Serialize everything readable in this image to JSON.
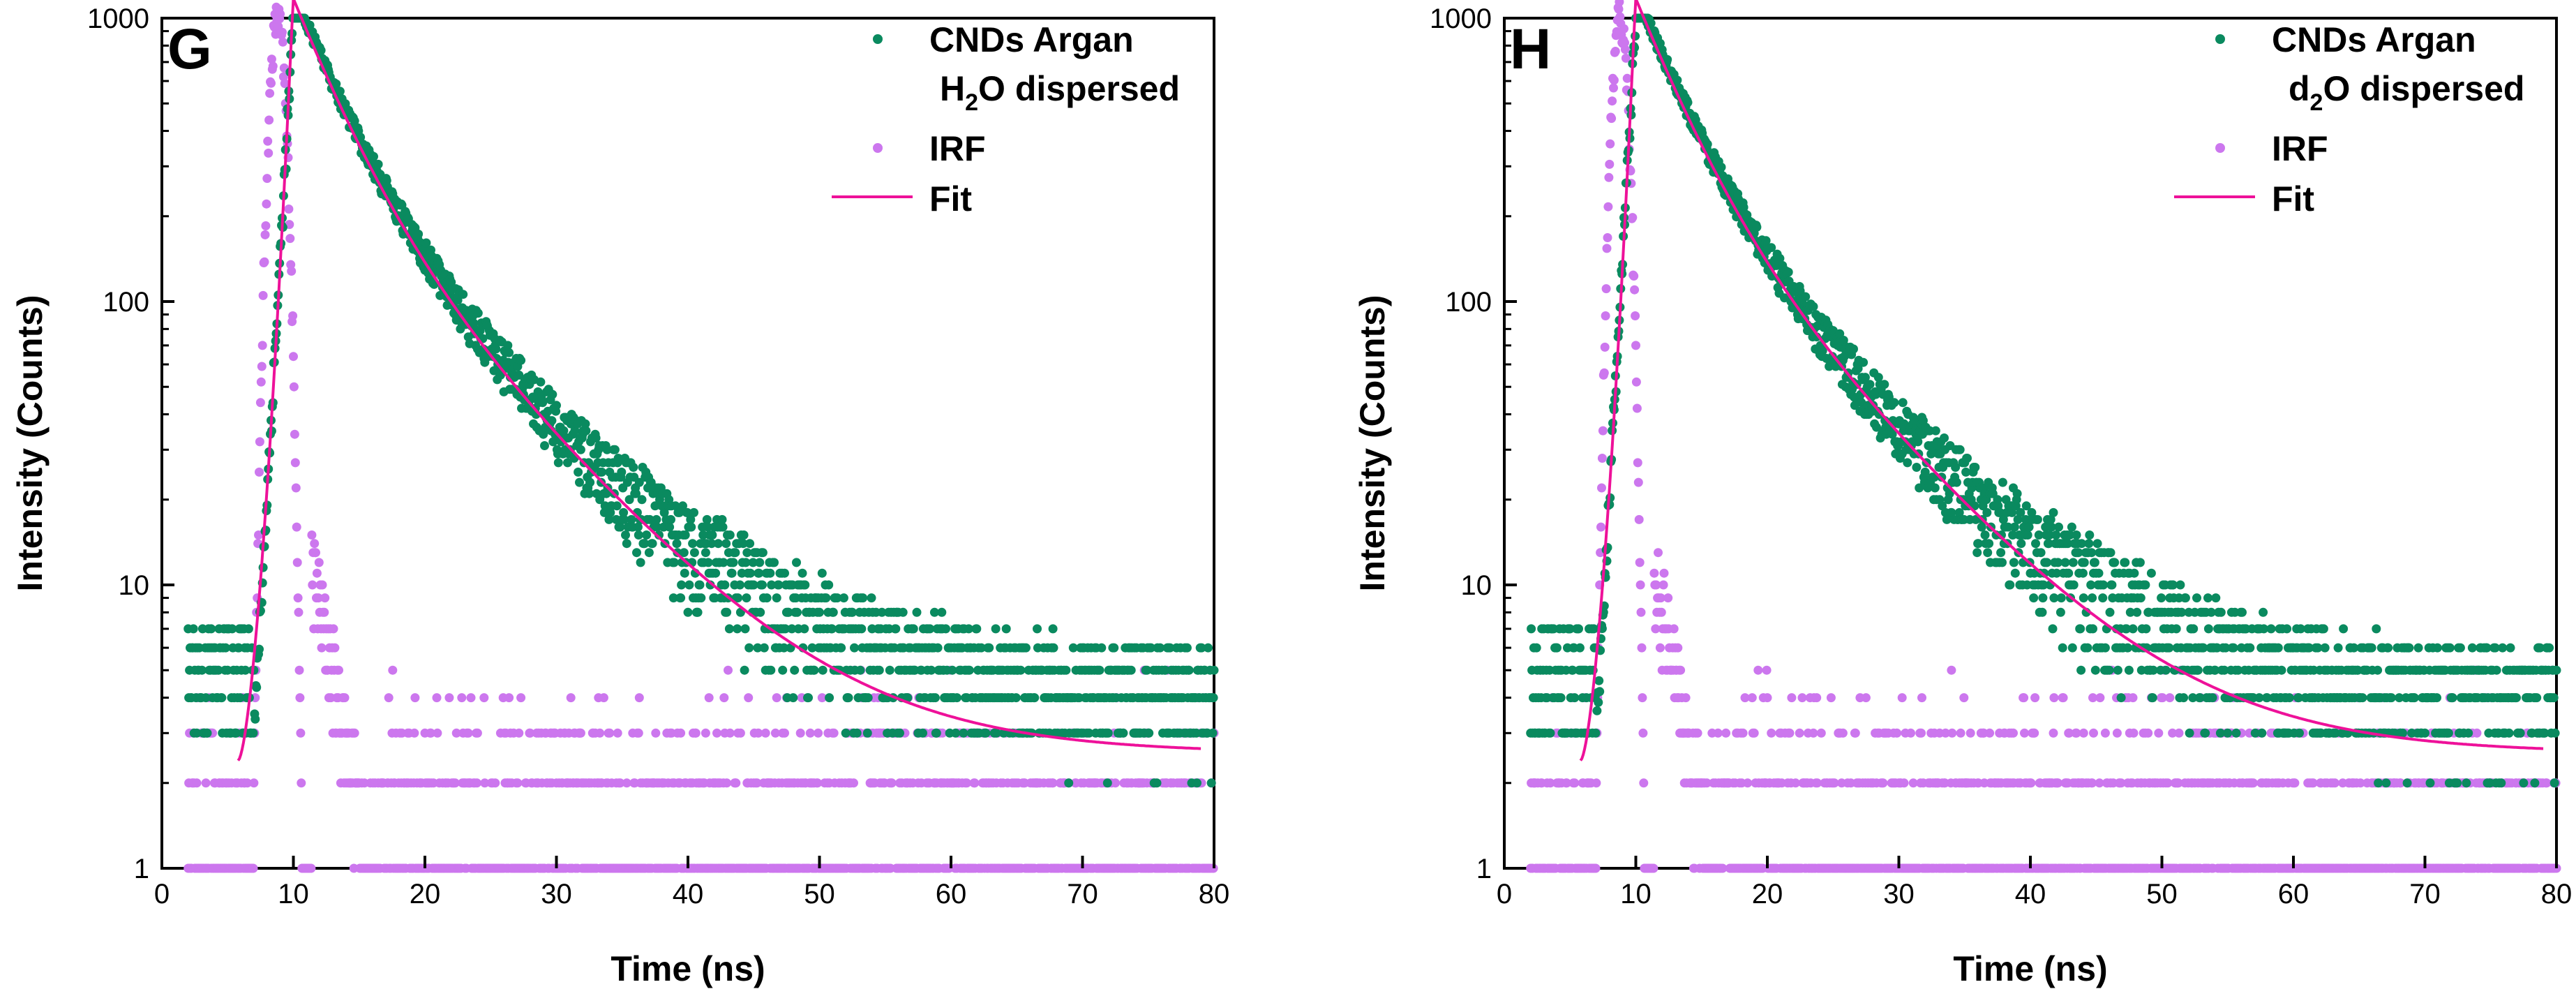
{
  "panels": [
    {
      "panel_label": "G",
      "legend": {
        "sample": "CNDs Argan",
        "solvent_main": "H",
        "solvent_sub": "2",
        "solvent_rest": "O dispersed",
        "irf": "IRF",
        "fit": "Fit"
      }
    },
    {
      "panel_label": "H",
      "legend": {
        "sample": "CNDs Argan",
        "solvent_main": "d",
        "solvent_sub": "2",
        "solvent_rest": "O dispersed",
        "irf": "IRF",
        "fit": "Fit"
      }
    }
  ],
  "colors": {
    "sample": "#0a8a5f",
    "irf": "#cc77ee",
    "fit": "#ee1199"
  },
  "chart_data": [
    {
      "type": "scatter",
      "title": "G",
      "xlabel": "Time (ns)",
      "ylabel": "Intensity (Counts)",
      "xlim": [
        0,
        80
      ],
      "ylim": [
        1,
        1000
      ],
      "yscale": "log",
      "xticks": [
        0,
        10,
        20,
        30,
        40,
        50,
        60,
        70,
        80
      ],
      "yticks": [
        1,
        10,
        100,
        1000
      ],
      "series": [
        {
          "name": "CNDs Argan H2O dispersed",
          "kind": "scatter",
          "color": "#0a8a5f",
          "model": {
            "baseline_counts": [
              3,
              4,
              5,
              6,
              7
            ],
            "rise_start_ns": 7.0,
            "peak_ns": 10.0,
            "peak_counts": 1000,
            "decay_components": [
              {
                "amplitude": 900,
                "tau_ns": 3.2
              },
              {
                "amplitude": 330,
                "tau_ns": 8.5
              }
            ],
            "background_counts": 2.6,
            "range_ns": [
              2,
              80
            ]
          }
        },
        {
          "name": "IRF",
          "kind": "scatter",
          "color": "#cc77ee",
          "model": {
            "peak_ns": 8.8,
            "peak_counts": 1000,
            "fwhm_ns": 1.2,
            "baseline_counts": [
              1,
              2,
              3,
              4,
              5
            ],
            "range_ns": [
              2,
              80
            ]
          }
        },
        {
          "name": "Fit",
          "kind": "line",
          "color": "#ee1199",
          "model": {
            "start_ns": 5.8,
            "start_counts": 2.4,
            "peak_ns": 9.9,
            "peak_counts": 960,
            "decay_components": [
              {
                "amplitude": 880,
                "tau_ns": 3.2
              },
              {
                "amplitude": 320,
                "tau_ns": 8.5
              }
            ],
            "background_counts": 2.55,
            "end_ns": 79
          }
        }
      ]
    },
    {
      "type": "scatter",
      "title": "H",
      "xlabel": "Time (ns)",
      "ylabel": "Intensity (Counts)",
      "xlim": [
        0,
        80
      ],
      "ylim": [
        1,
        1000
      ],
      "yscale": "log",
      "xticks": [
        0,
        10,
        20,
        30,
        40,
        50,
        60,
        70,
        80
      ],
      "yticks": [
        1,
        10,
        100,
        1000
      ],
      "series": [
        {
          "name": "CNDs Argan d2O dispersed",
          "kind": "scatter",
          "color": "#0a8a5f",
          "model": {
            "baseline_counts": [
              3,
              4,
              5,
              6,
              7
            ],
            "rise_start_ns": 7.0,
            "peak_ns": 10.0,
            "peak_counts": 1000,
            "decay_components": [
              {
                "amplitude": 900,
                "tau_ns": 3.2
              },
              {
                "amplitude": 330,
                "tau_ns": 8.5
              }
            ],
            "background_counts": 2.6,
            "range_ns": [
              2,
              80
            ]
          }
        },
        {
          "name": "IRF",
          "kind": "scatter",
          "color": "#cc77ee",
          "model": {
            "peak_ns": 8.8,
            "peak_counts": 1000,
            "fwhm_ns": 1.2,
            "baseline_counts": [
              1,
              2,
              3,
              4,
              5
            ],
            "range_ns": [
              2,
              80
            ]
          }
        },
        {
          "name": "Fit",
          "kind": "line",
          "color": "#ee1199",
          "model": {
            "start_ns": 5.8,
            "start_counts": 2.4,
            "peak_ns": 9.9,
            "peak_counts": 960,
            "decay_components": [
              {
                "amplitude": 880,
                "tau_ns": 3.2
              },
              {
                "amplitude": 320,
                "tau_ns": 8.5
              }
            ],
            "background_counts": 2.55,
            "end_ns": 79
          }
        }
      ]
    }
  ]
}
